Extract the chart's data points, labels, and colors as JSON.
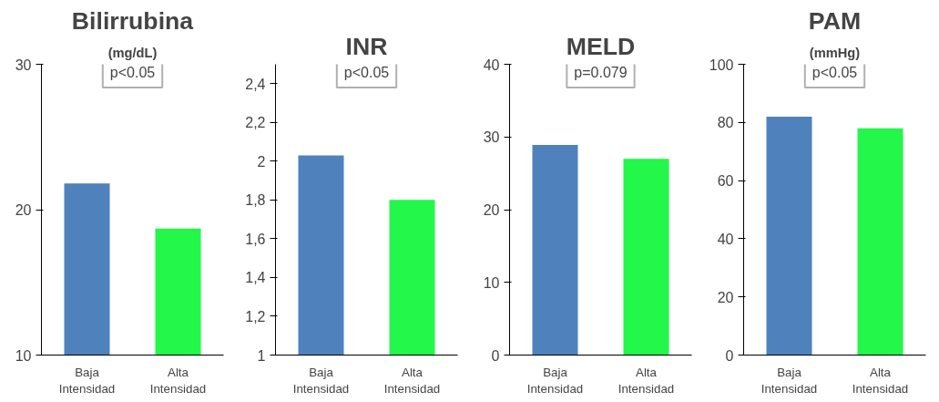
{
  "chart_data": [
    {
      "type": "bar",
      "title": "Bilirrubina",
      "subtitle": "(mg/dL)",
      "categories": [
        "Baja Intensidad",
        "Alta Intensidad"
      ],
      "values": [
        21.8,
        18.7
      ],
      "colors": [
        "#4f81bd",
        "#22f74a"
      ],
      "ylim": [
        10,
        30
      ],
      "yticks": [
        10,
        20,
        30
      ],
      "grid": false,
      "annotations": [
        "p<0.05"
      ]
    },
    {
      "type": "bar",
      "title": "INR",
      "categories": [
        "Baja Intensidad",
        "Alta Intensidad"
      ],
      "values": [
        2.03,
        1.8
      ],
      "colors": [
        "#4f81bd",
        "#22f74a"
      ],
      "ylim": [
        1,
        2.5
      ],
      "yticks": [
        1,
        {
          "value": 1.2,
          "label": "1,2"
        },
        {
          "value": 1.4,
          "label": "1,4"
        },
        {
          "value": 1.6,
          "label": "1,6"
        },
        {
          "value": 1.8,
          "label": "1,8"
        },
        2,
        {
          "value": 2.2,
          "label": "2,2"
        },
        {
          "value": 2.4,
          "label": "2,4"
        }
      ],
      "grid": false,
      "annotations": [
        "p<0.05"
      ]
    },
    {
      "type": "bar",
      "title": "MELD",
      "categories": [
        "Baja Intensidad",
        "Alta Intensidad"
      ],
      "values": [
        28.9,
        27
      ],
      "colors": [
        "#4f81bd",
        "#22f74a"
      ],
      "ylim": [
        0,
        40
      ],
      "yticks": [
        0,
        10,
        20,
        30,
        40
      ],
      "grid": false,
      "annotations": [
        "p=0.079"
      ]
    },
    {
      "type": "bar",
      "title": "PAM",
      "subtitle": "(mmHg)",
      "categories": [
        "Baja Intensidad",
        "Alta Intensidad"
      ],
      "values": [
        82,
        78
      ],
      "colors": [
        "#4f81bd",
        "#22f74a"
      ],
      "ylim": [
        0,
        100
      ],
      "yticks": [
        0,
        20,
        40,
        60,
        80,
        100
      ],
      "grid": false,
      "annotations": [
        "p<0.05"
      ]
    }
  ]
}
